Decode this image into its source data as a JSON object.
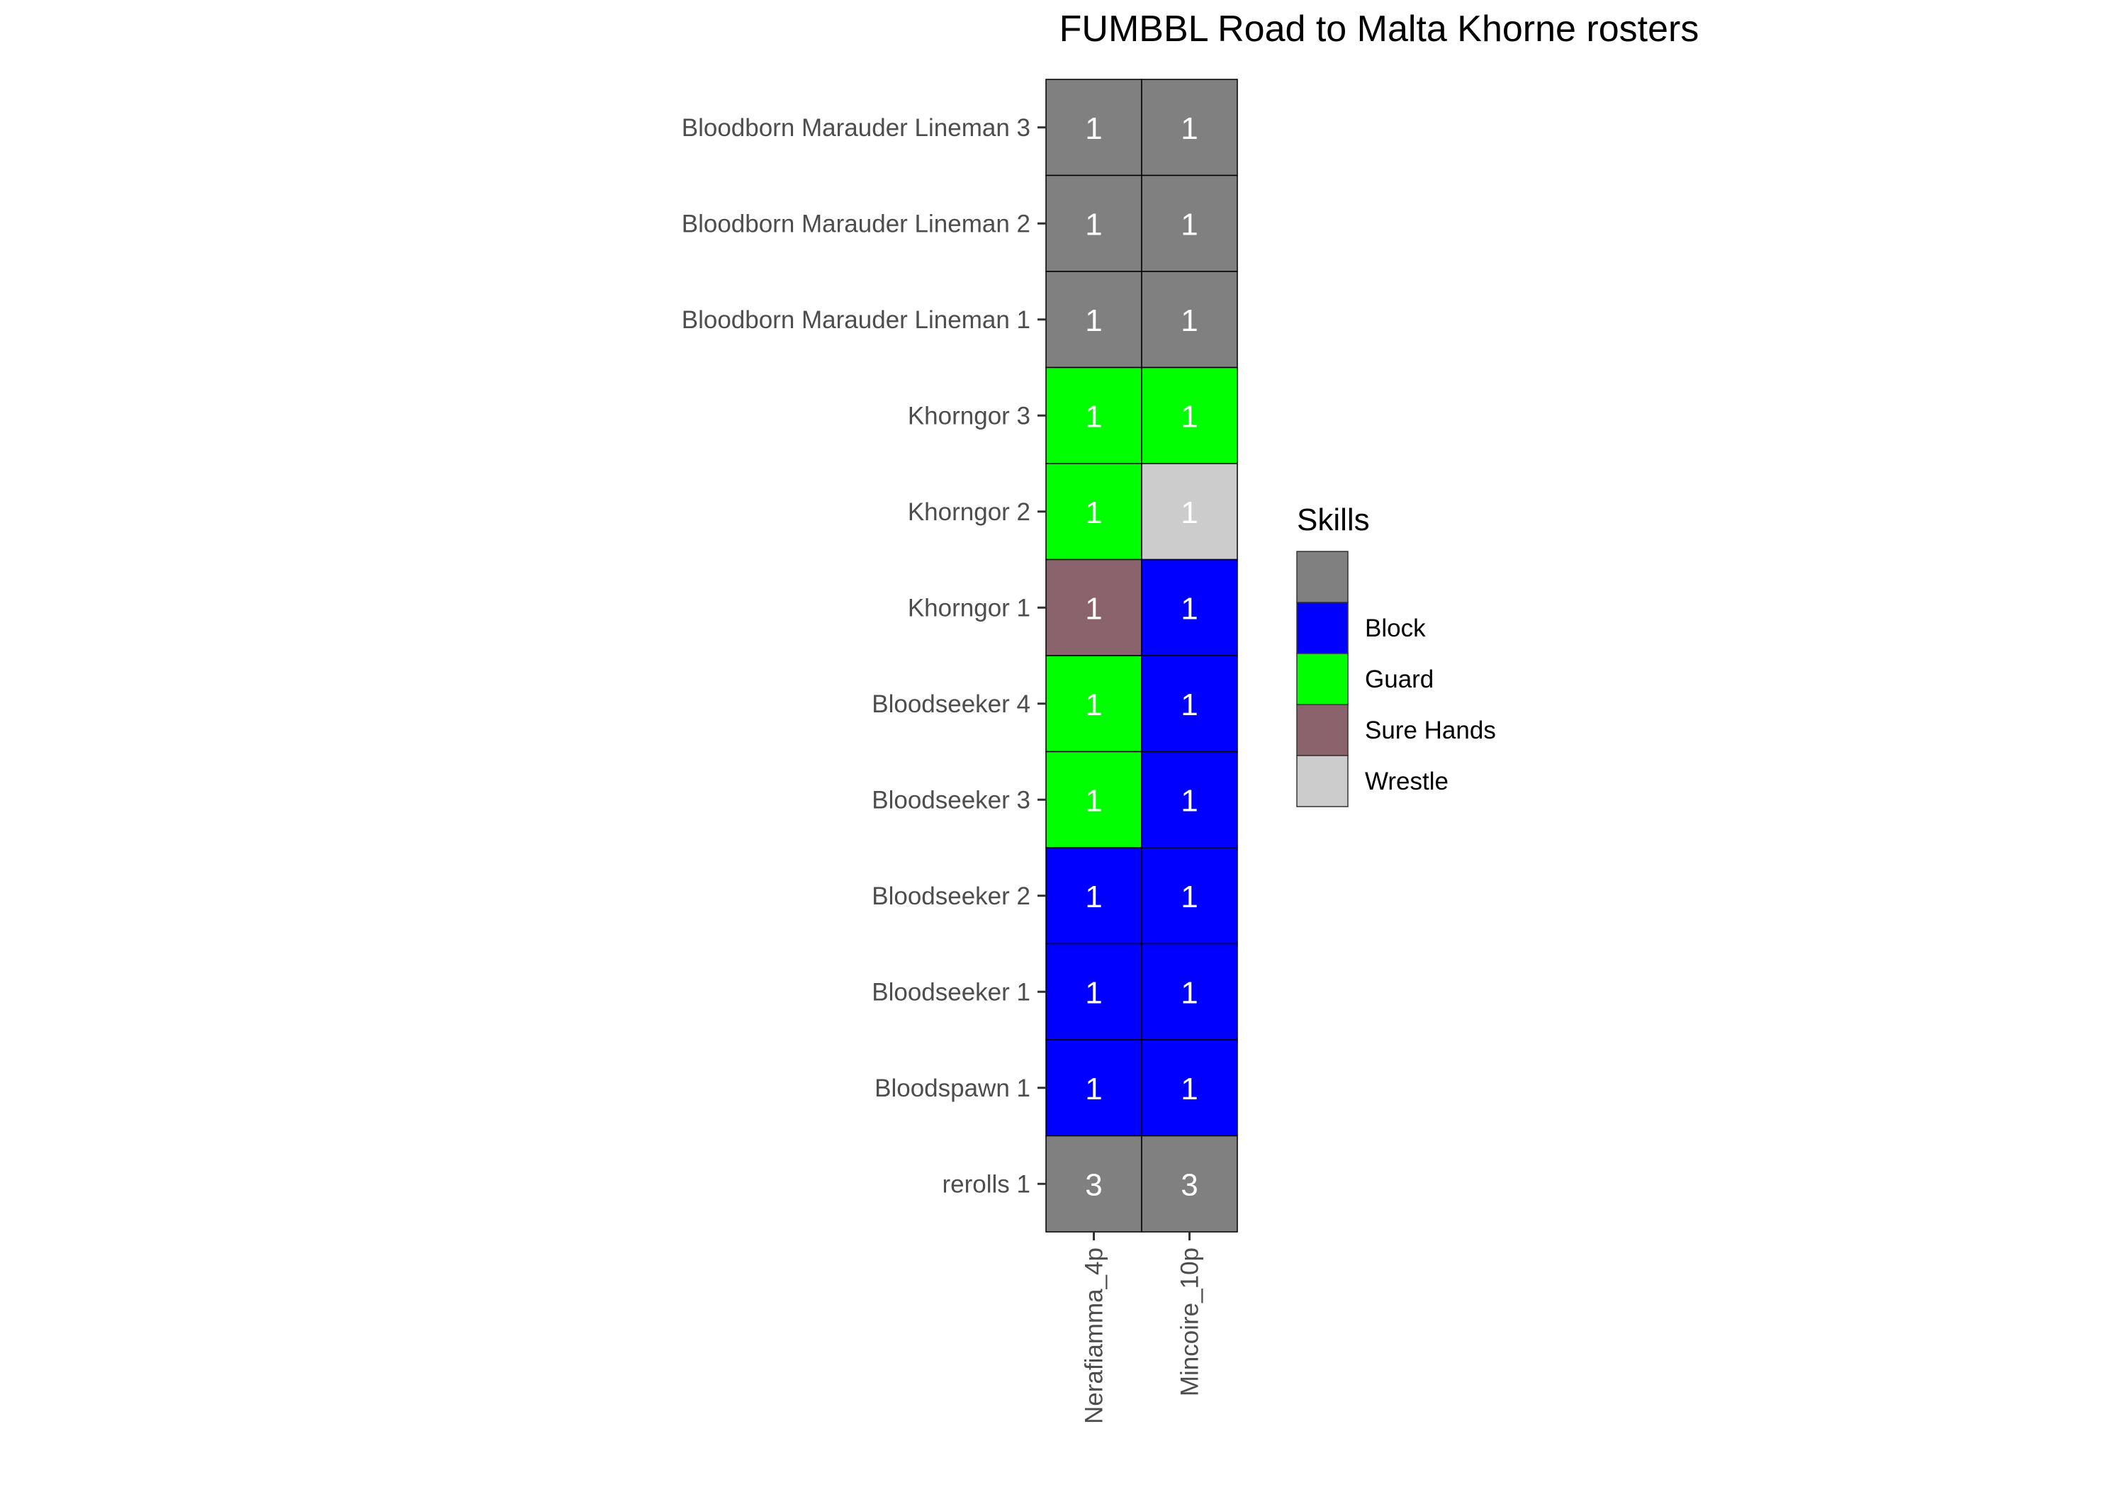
{
  "chart_data": {
    "type": "heatmap",
    "title": "FUMBBL Road to Malta Khorne rosters",
    "x": [
      "Nerafiamma_4p",
      "Mincoire_10p"
    ],
    "y": [
      "Bloodborn Marauder Lineman 3",
      "Bloodborn Marauder Lineman 2",
      "Bloodborn Marauder Lineman 1",
      "Khorngor 3",
      "Khorngor 2",
      "Khorngor 1",
      "Bloodseeker 4",
      "Bloodseeker 3",
      "Bloodseeker 2",
      "Bloodseeker 1",
      "Bloodspawn 1",
      "rerolls 1"
    ],
    "values": [
      [
        1,
        1
      ],
      [
        1,
        1
      ],
      [
        1,
        1
      ],
      [
        1,
        1
      ],
      [
        1,
        1
      ],
      [
        1,
        1
      ],
      [
        1,
        1
      ],
      [
        1,
        1
      ],
      [
        1,
        1
      ],
      [
        1,
        1
      ],
      [
        1,
        1
      ],
      [
        3,
        3
      ]
    ],
    "skills": [
      [
        "",
        ""
      ],
      [
        "",
        ""
      ],
      [
        "",
        ""
      ],
      [
        "Guard",
        "Guard"
      ],
      [
        "Guard",
        "Wrestle"
      ],
      [
        "Sure Hands",
        "Block"
      ],
      [
        "Guard",
        "Block"
      ],
      [
        "Guard",
        "Block"
      ],
      [
        "Block",
        "Block"
      ],
      [
        "Block",
        "Block"
      ],
      [
        "Block",
        "Block"
      ],
      [
        "",
        ""
      ]
    ],
    "legend": {
      "title": "Skills",
      "position": "right",
      "entries": [
        {
          "label": "",
          "color": "#808080"
        },
        {
          "label": "Block",
          "color": "#0000ff"
        },
        {
          "label": "Guard",
          "color": "#00ff00"
        },
        {
          "label": "Sure Hands",
          "color": "#8b636c"
        },
        {
          "label": "Wrestle",
          "color": "#cccccc"
        }
      ]
    },
    "grid": false
  }
}
